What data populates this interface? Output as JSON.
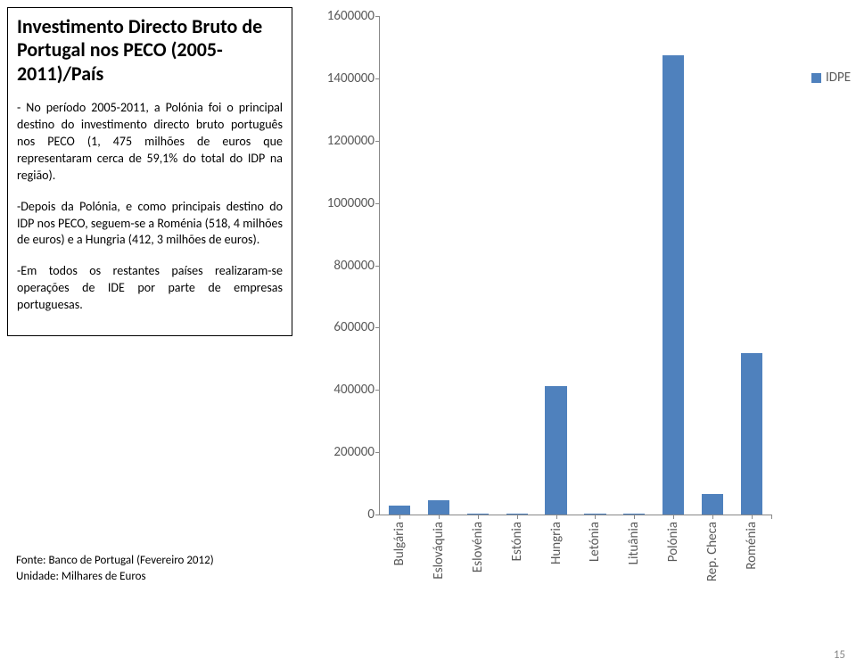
{
  "title": "Investimento Directo Bruto de Portugal nos PECO (2005-2011)/País",
  "paragraphs": [
    "- No período 2005-2011, a Polónia foi o principal destino do investimento directo bruto português nos PECO (1, 475 milhões de euros que representaram cerca de  59,1% do total do IDP na região).",
    "-Depois da Polónia, e como principais destino do IDP nos PECO, seguem-se a Roménia (518, 4 milhões de euros) e a Hungria (412, 3 milhões de euros).",
    "-Em todos os restantes países realizaram-se operações de IDE por parte de empresas portuguesas."
  ],
  "source_lines": [
    "Fonte: Banco de Portugal (Fevereiro  2012)",
    "Unidade: Milhares de Euros"
  ],
  "page_number": "15",
  "chart": {
    "type": "bar",
    "categories": [
      "Bulgária",
      "Eslováquia",
      "Eslovénia",
      "Estónia",
      "Hungria",
      "Letónia",
      "Lituânia",
      "Polónia",
      "Rep. Checa",
      "Roménia"
    ],
    "values": [
      28000,
      45000,
      2000,
      1000,
      412300,
      1000,
      1000,
      1475000,
      65000,
      518400
    ],
    "bar_color": "#4f81bd",
    "y_min": 0,
    "y_max": 1600000,
    "y_tick_step": 200000,
    "y_tick_labels": [
      "0",
      "200000",
      "400000",
      "600000",
      "800000",
      "1000000",
      "1200000",
      "1400000",
      "1600000"
    ],
    "axis_color": "#888888",
    "tick_label_color": "#595959",
    "tick_label_fontsize": 15,
    "background_color": "#ffffff",
    "bar_width_ratio": 0.55,
    "legend_label": "IDPE",
    "legend_swatch_color": "#4f81bd"
  }
}
